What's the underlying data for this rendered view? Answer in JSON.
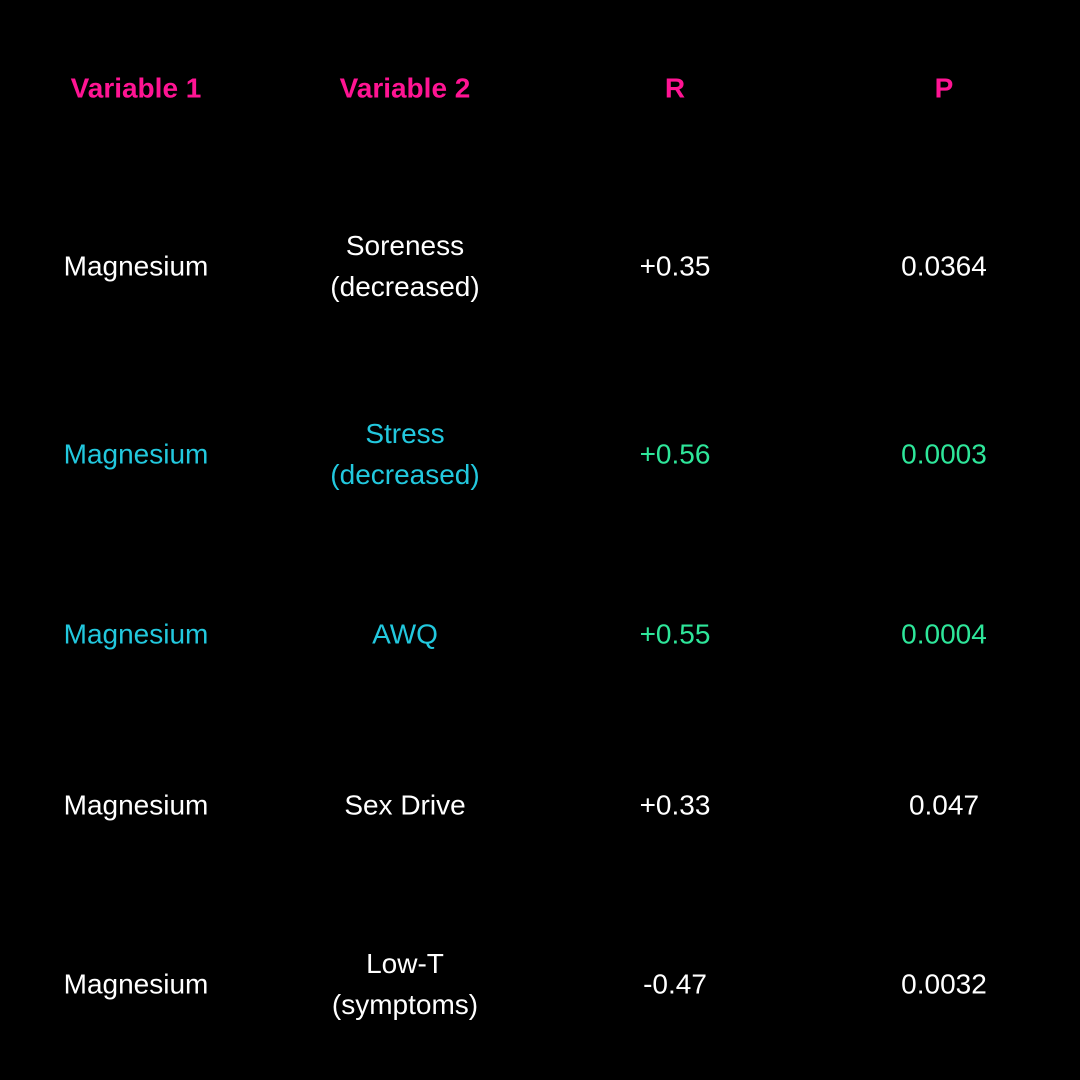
{
  "table": {
    "header": [
      "Variable 1",
      "Variable 2",
      "R",
      "P"
    ],
    "rows": [
      [
        "Magnesium",
        "Soreness (decreased)",
        "+0.35",
        "0.0364"
      ],
      [
        "Magnesium",
        "Stress (decreased)",
        "+0.56",
        "0.0003"
      ],
      [
        "Magnesium",
        "AWQ",
        "+0.55",
        "0.0004"
      ],
      [
        "Magnesium",
        "Sex Drive",
        "+0.33",
        "0.047"
      ],
      [
        "Magnesium",
        "Low-T (symptoms)",
        "-0.47",
        "0.0032"
      ]
    ]
  }
}
